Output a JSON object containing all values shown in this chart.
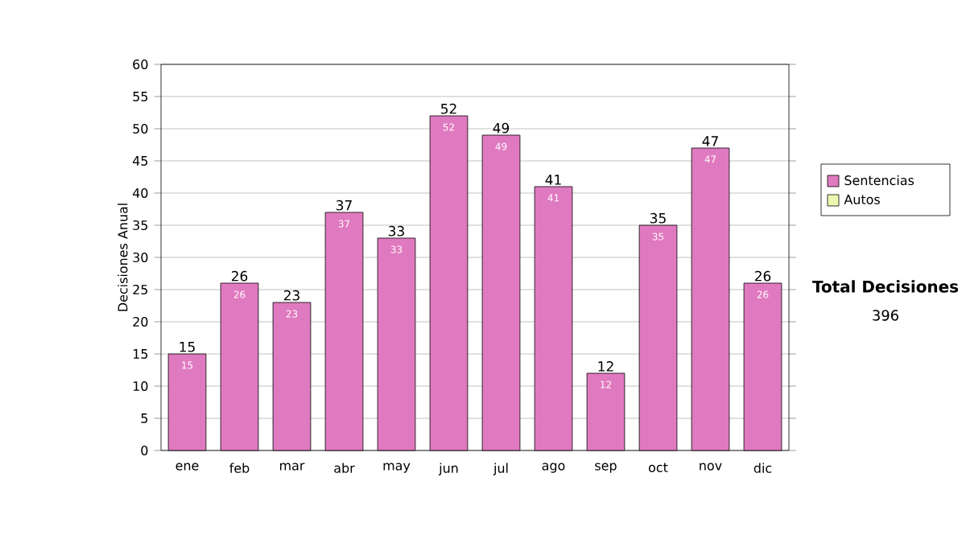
{
  "chart_data": {
    "type": "bar",
    "ylabel": "Decisiones Anual",
    "categories": [
      "ene",
      "feb",
      "mar",
      "abr",
      "may",
      "jun",
      "jul",
      "ago",
      "sep",
      "oct",
      "nov",
      "dic"
    ],
    "series": [
      {
        "name": "Sentencias",
        "color": "#e07ac0",
        "values": [
          15,
          26,
          23,
          37,
          33,
          52,
          49,
          41,
          12,
          35,
          47,
          26
        ],
        "value_labels": [
          "15",
          "26",
          "23",
          "37",
          "33",
          "52",
          "49",
          "41",
          "12",
          "35",
          "47",
          "26"
        ]
      },
      {
        "name": "Autos",
        "color": "#eef7b0",
        "values": [
          null,
          null,
          null,
          null,
          null,
          null,
          null,
          null,
          null,
          null,
          null,
          null
        ]
      }
    ],
    "ylim": [
      0,
      60
    ],
    "yticks": [
      0,
      5,
      10,
      15,
      20,
      25,
      30,
      35,
      40,
      45,
      50,
      55,
      60
    ],
    "grid": "y",
    "legend": "right",
    "annotations": [
      "Total Decisiones",
      "396",
      {
        "text": "15",
        "x": "ene",
        "y": 15
      },
      {
        "text": "26",
        "x": "feb",
        "y": 26
      },
      {
        "text": "23",
        "x": "mar",
        "y": 23
      },
      {
        "text": "37",
        "x": "abr",
        "y": 37
      },
      {
        "text": "33",
        "x": "may",
        "y": 33
      },
      {
        "text": "52",
        "x": "jun",
        "y": 52
      },
      {
        "text": "49",
        "x": "jul",
        "y": 49
      },
      {
        "text": "41",
        "x": "ago",
        "y": 41
      },
      {
        "text": "12",
        "x": "sep",
        "y": 12
      },
      {
        "text": "35",
        "x": "oct",
        "y": 35
      },
      {
        "text": "47",
        "x": "nov",
        "y": 47
      },
      {
        "text": "26",
        "x": "dic",
        "y": 26
      }
    ]
  }
}
